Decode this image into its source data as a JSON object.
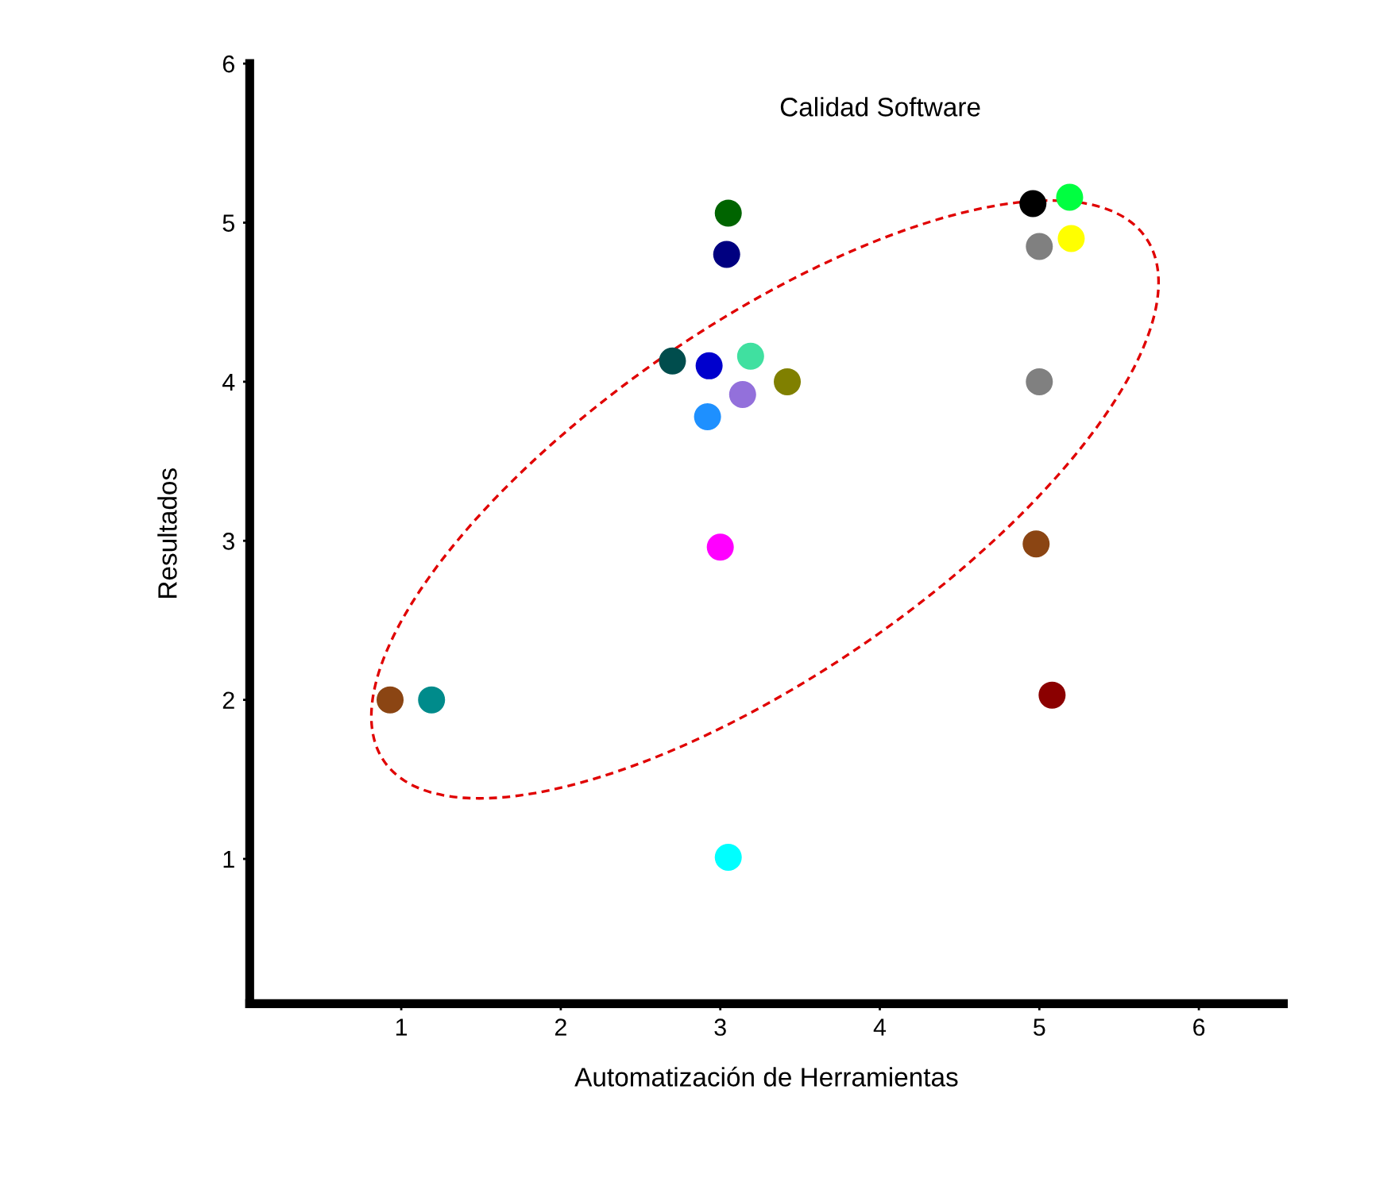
{
  "chart_data": {
    "type": "scatter",
    "title": "Calidad Software",
    "xlabel": "Automatización de Herramientas",
    "ylabel": "Resultados",
    "x": [
      0.93,
      1.19,
      3.05,
      3.0,
      3.05,
      3.04,
      2.7,
      2.93,
      3.19,
      3.14,
      3.42,
      2.92,
      4.96,
      5.19,
      5.0,
      5.2,
      5.0,
      4.98,
      5.08
    ],
    "values": [
      2.0,
      2.0,
      1.01,
      2.96,
      5.06,
      4.8,
      4.13,
      4.1,
      4.16,
      3.92,
      4.0,
      3.78,
      5.12,
      5.16,
      4.85,
      4.9,
      4.0,
      2.98,
      2.03
    ],
    "colors": [
      "#8b4513",
      "#008b8b",
      "#00ffff",
      "#ff00ff",
      "#006400",
      "#000080",
      "#004d4d",
      "#0000cd",
      "#40e0a0",
      "#9370db",
      "#808000",
      "#1e90ff",
      "#000000",
      "#00ff40",
      "#808080",
      "#ffff00",
      "#808080",
      "#8b4513",
      "#8b0000"
    ],
    "xlim": [
      0.05,
      6.53
    ],
    "ylim": [
      0.09,
      6.0
    ],
    "xticks": [
      1,
      2,
      3,
      4,
      5,
      6
    ],
    "yticks": [
      1,
      2,
      3,
      4,
      5,
      6
    ],
    "grid": false,
    "legend": false,
    "marker": "circle"
  }
}
